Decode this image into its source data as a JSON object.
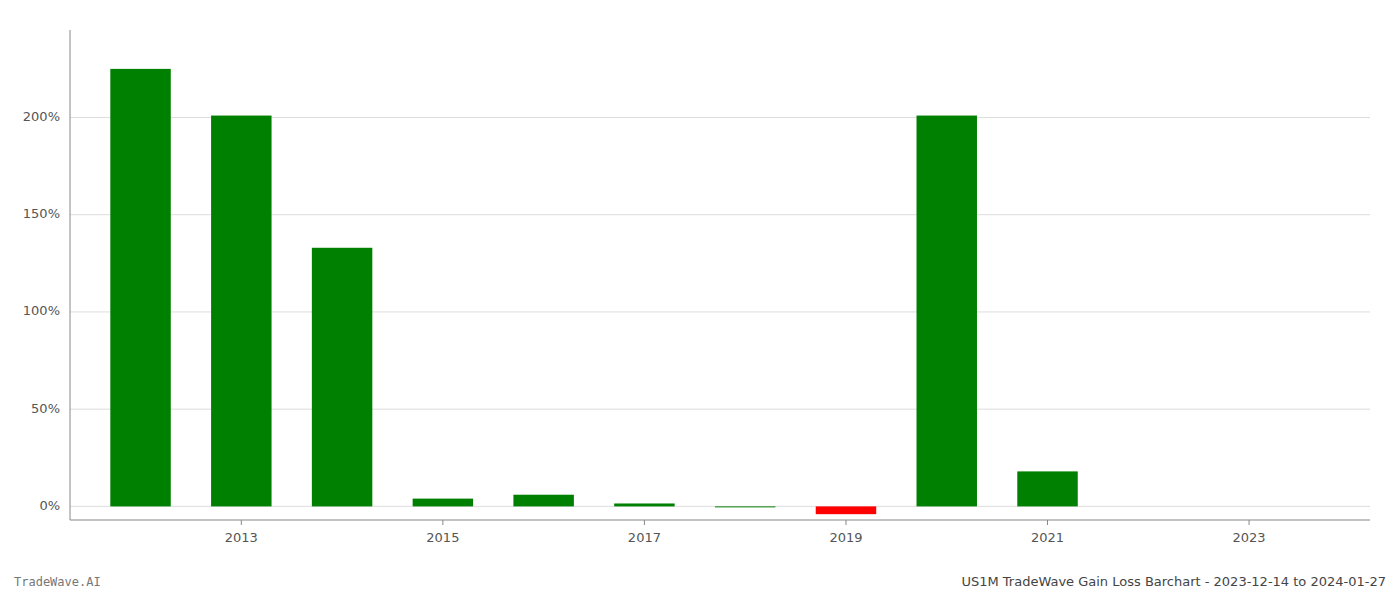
{
  "chart_data": {
    "type": "bar",
    "title": "US1M TradeWave Gain Loss Barchart - 2023-12-14 to 2024-01-27",
    "annotations": [
      "TradeWave.AI"
    ],
    "x": [
      2012,
      2013,
      2014,
      2015,
      2016,
      2017,
      2018,
      2019,
      2020,
      2021,
      2022,
      2023
    ],
    "values": [
      2.25,
      2.01,
      1.33,
      0.04,
      0.06,
      0.015,
      -0.005,
      -0.04,
      2.01,
      0.18,
      0.0,
      0.0
    ],
    "colors": [
      "#008000",
      "#008000",
      "#008000",
      "#008000",
      "#008000",
      "#008000",
      "#008000",
      "#ff0000",
      "#008000",
      "#008000",
      "#008000",
      "#008000"
    ],
    "xlim": [
      2011.3,
      2024.2
    ],
    "xticks": [
      2013,
      2015,
      2017,
      2019,
      2021,
      2023
    ],
    "ylim": [
      -0.07,
      2.45
    ],
    "yticks": [
      {
        "value": 0.0,
        "label": "0%"
      },
      {
        "value": 0.5,
        "label": "50%"
      },
      {
        "value": 1.0,
        "label": "100%"
      },
      {
        "value": 1.5,
        "label": "150%"
      },
      {
        "value": 2.0,
        "label": "200%"
      }
    ],
    "grid": true
  }
}
